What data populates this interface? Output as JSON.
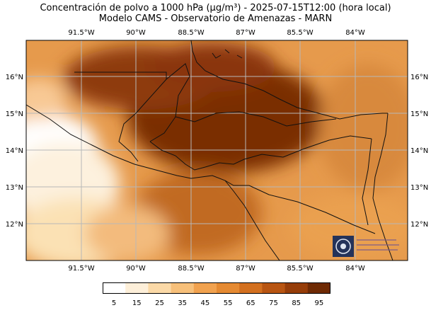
{
  "title": {
    "line1": "Concentración de polvo a 1000 hPa (µg/m³) - 2025-07-15T12:00 (hora local)",
    "line2": "Modelo CAMS - Observatorio de Amenazas - MARN"
  },
  "map": {
    "lon_labels": [
      "91.5°W",
      "90°W",
      "88.5°W",
      "87°W",
      "85.5°W",
      "84°W"
    ],
    "lat_labels": [
      "16°N",
      "15°N",
      "14°N",
      "13°N",
      "12°N"
    ],
    "lon_range": [
      -93.2,
      -82.8
    ],
    "lat_range": [
      11.0,
      16.9
    ],
    "gridlines": true
  },
  "colorbar": {
    "ticks": [
      "5",
      "15",
      "25",
      "35",
      "45",
      "55",
      "65",
      "75",
      "85",
      "95"
    ],
    "colors": [
      "#ffffff",
      "#fdefd9",
      "#fbd9a7",
      "#f7c07a",
      "#f1a24f",
      "#e58a32",
      "#d3701f",
      "#b85512",
      "#963d09",
      "#6f2a04"
    ]
  }
}
